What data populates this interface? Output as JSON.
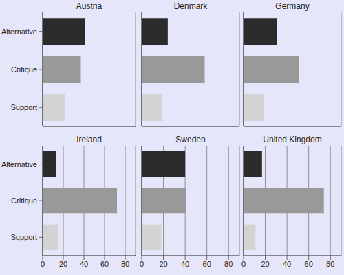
{
  "chart_data": [
    {
      "type": "bar",
      "title": "Austria",
      "orientation": "horizontal",
      "categories": [
        "Alternative",
        "Critique",
        "Support"
      ],
      "values": [
        41,
        37,
        22
      ],
      "colors": [
        "#2b2b2b",
        "#999999",
        "#d3d3d3"
      ],
      "xlim": [
        0,
        90
      ],
      "xticks": [
        0,
        20,
        40,
        60,
        80
      ],
      "grid": true,
      "tick_labels": "y"
    },
    {
      "type": "bar",
      "title": "Denmark",
      "orientation": "horizontal",
      "categories": [
        "Alternative",
        "Critique",
        "Support"
      ],
      "values": [
        24,
        58,
        19
      ],
      "colors": [
        "#2b2b2b",
        "#999999",
        "#d3d3d3"
      ],
      "xlim": [
        0,
        90
      ],
      "xticks": [
        0,
        20,
        40,
        60,
        80
      ],
      "grid": true,
      "tick_labels": false
    },
    {
      "type": "bar",
      "title": "Germany",
      "orientation": "horizontal",
      "categories": [
        "Alternative",
        "Critique",
        "Support"
      ],
      "values": [
        31,
        51,
        19
      ],
      "colors": [
        "#2b2b2b",
        "#999999",
        "#d3d3d3"
      ],
      "xlim": [
        0,
        90
      ],
      "xticks": [
        0,
        20,
        40,
        60,
        80
      ],
      "grid": true,
      "tick_labels": false
    },
    {
      "type": "bar",
      "title": "Ireland",
      "orientation": "horizontal",
      "categories": [
        "Alternative",
        "Critique",
        "Support"
      ],
      "values": [
        13,
        72,
        15
      ],
      "colors": [
        "#2b2b2b",
        "#999999",
        "#d3d3d3"
      ],
      "xlim": [
        0,
        90
      ],
      "xticks": [
        0,
        20,
        40,
        60,
        80
      ],
      "grid": true
    },
    {
      "type": "bar",
      "title": "Sweden",
      "orientation": "horizontal",
      "categories": [
        "Alternative",
        "Critique",
        "Support"
      ],
      "values": [
        40,
        41,
        18
      ],
      "colors": [
        "#2b2b2b",
        "#999999",
        "#d3d3d3"
      ],
      "xlim": [
        0,
        90
      ],
      "xticks": [
        0,
        20,
        40,
        60,
        80
      ],
      "grid": true,
      "tick_labels": "x"
    },
    {
      "type": "bar",
      "title": "United Kingdom",
      "orientation": "horizontal",
      "categories": [
        "Alternative",
        "Critique",
        "Support"
      ],
      "values": [
        17,
        74,
        11
      ],
      "colors": [
        "#2b2b2b",
        "#999999",
        "#d3d3d3"
      ],
      "xlim": [
        0,
        90
      ],
      "xticks": [
        0,
        20,
        40,
        60,
        80
      ],
      "grid": true,
      "tick_labels": "x"
    }
  ]
}
